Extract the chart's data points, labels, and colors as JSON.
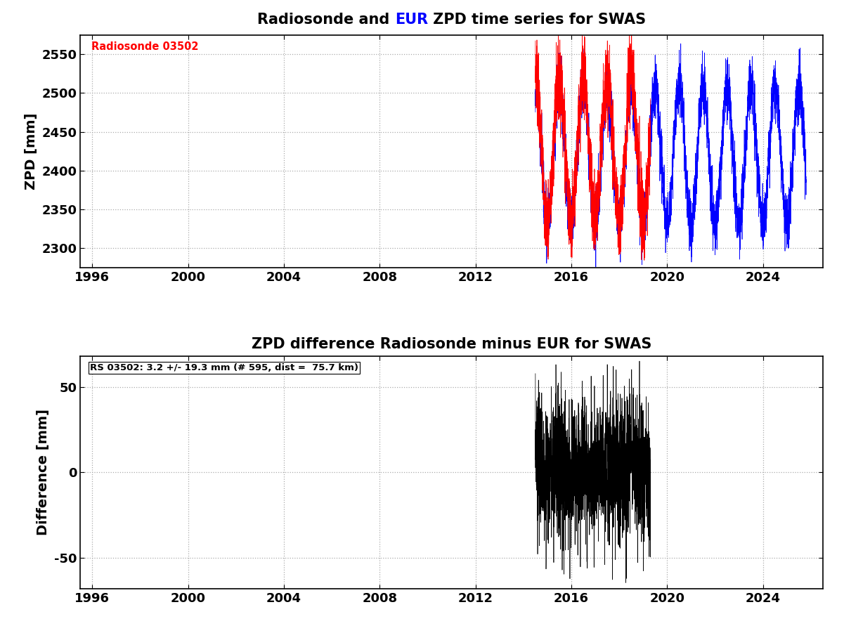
{
  "title1_parts": [
    "Radiosonde and ",
    "EUR",
    " ZPD time series for SWAS"
  ],
  "title1_colors": [
    "black",
    "blue",
    "black"
  ],
  "title2": "ZPD difference Radiosonde minus EUR for SWAS",
  "ylabel1": "ZPD [mm]",
  "ylabel2": "Difference [mm]",
  "xlim": [
    1995.5,
    2026.5
  ],
  "ylim1": [
    2275,
    2575
  ],
  "ylim2": [
    -68,
    68
  ],
  "yticks1": [
    2300,
    2350,
    2400,
    2450,
    2500,
    2550
  ],
  "yticks2": [
    -50,
    0,
    50
  ],
  "xticks": [
    1996,
    2000,
    2004,
    2008,
    2012,
    2016,
    2020,
    2024
  ],
  "rs_label": "Radiosonde 03502",
  "rs_label_color": "red",
  "diff_label": "RS 03502: 3.2 +/- 19.3 mm (# 595, dist =  75.7 km)",
  "rs_color": "red",
  "epn_color": "blue",
  "diff_color": "black",
  "background_color": "white",
  "grid_color": "#aaaaaa",
  "rs_start": 2014.5,
  "rs_end": 2019.3,
  "epn_start": 2014.5,
  "epn_end": 2025.8,
  "mean_zpd": 2420,
  "amplitude_zpd": 95,
  "noise_rs": 25,
  "noise_epn": 18,
  "mean_diff": 3.2,
  "seed": 7
}
